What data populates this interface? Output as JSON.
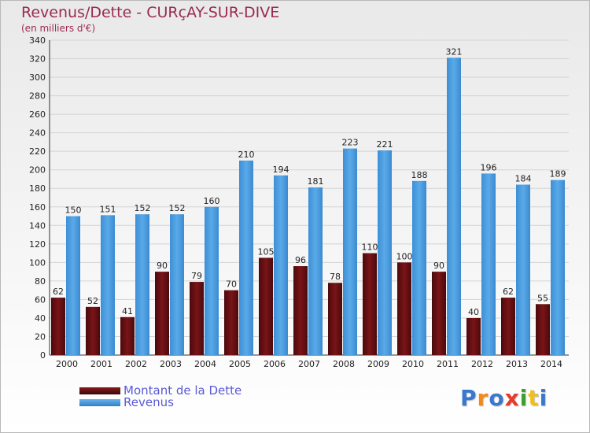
{
  "title": "Revenus/Dette - CURçAY-SUR-DIVE",
  "subtitle": "(en milliers d'€)",
  "logo": {
    "text": "Proxiti",
    "letter_colors": [
      "#3a78d0",
      "#f08a1a",
      "#3a78d0",
      "#e83a2a",
      "#3aa02a",
      "#f0c01a",
      "#3a78d0"
    ]
  },
  "colors": {
    "dette": "#6b0f12",
    "revenus": "#4a9de2",
    "axis_text": "#222222",
    "title": "#9a2a52",
    "legend_text": "#5a5ad8"
  },
  "chart_data": {
    "type": "bar",
    "categories": [
      "2000",
      "2001",
      "2002",
      "2003",
      "2004",
      "2005",
      "2006",
      "2007",
      "2008",
      "2009",
      "2010",
      "2011",
      "2012",
      "2013",
      "2014"
    ],
    "series": [
      {
        "name": "Montant de la Dette",
        "values": [
          62,
          52,
          41,
          90,
          79,
          70,
          105,
          96,
          78,
          110,
          100,
          90,
          40,
          62,
          55
        ]
      },
      {
        "name": "Revenus",
        "values": [
          150,
          151,
          152,
          152,
          160,
          210,
          194,
          181,
          223,
          221,
          188,
          321,
          196,
          184,
          189
        ]
      }
    ],
    "ylim": [
      0,
      340
    ],
    "yticks": [
      0,
      20,
      40,
      60,
      80,
      100,
      120,
      140,
      160,
      180,
      200,
      220,
      240,
      260,
      280,
      300,
      320,
      340
    ],
    "grid": true,
    "legend_position": "bottom-left"
  }
}
